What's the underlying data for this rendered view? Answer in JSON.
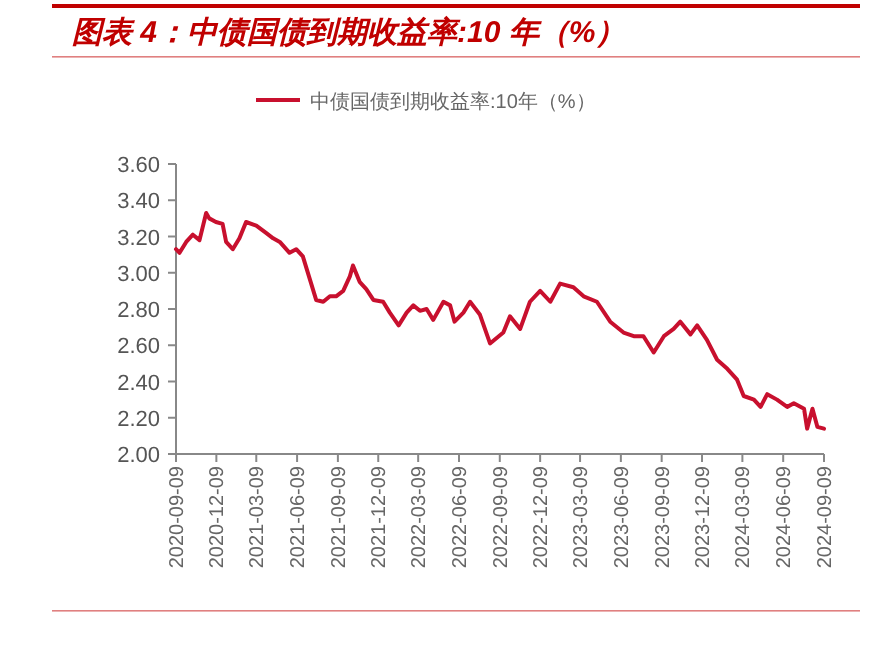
{
  "chart_data": {
    "type": "line",
    "title": "图表 4：中债国债到期收益率:10 年（%）",
    "x": [
      "2020-09-09",
      "2020-09-17",
      "2020-10-02",
      "2020-10-17",
      "2020-11-01",
      "2020-11-16",
      "2020-11-23",
      "2020-12-08",
      "2020-12-23",
      "2020-12-31",
      "2021-01-15",
      "2021-01-30",
      "2021-02-14",
      "2021-03-09",
      "2021-03-31",
      "2021-04-16",
      "2021-05-01",
      "2021-05-23",
      "2021-06-07",
      "2021-06-22",
      "2021-07-07",
      "2021-07-22",
      "2021-08-07",
      "2021-08-22",
      "2021-09-05",
      "2021-09-21",
      "2021-10-06",
      "2021-10-13",
      "2021-10-28",
      "2021-11-12",
      "2021-11-28",
      "2021-12-20",
      "2022-01-04",
      "2022-01-24",
      "2022-02-11",
      "2022-02-26",
      "2022-03-13",
      "2022-03-28",
      "2022-04-12",
      "2022-05-05",
      "2022-05-20",
      "2022-05-30",
      "2022-06-19",
      "2022-07-04",
      "2022-07-26",
      "2022-08-18",
      "2022-09-17",
      "2022-10-02",
      "2022-10-25",
      "2022-11-16",
      "2022-12-09",
      "2023-01-01",
      "2023-01-23",
      "2023-02-22",
      "2023-03-17",
      "2023-04-16",
      "2023-05-16",
      "2023-06-15",
      "2023-07-08",
      "2023-07-30",
      "2023-08-22",
      "2023-09-14",
      "2023-10-06",
      "2023-10-21",
      "2023-11-13",
      "2023-11-28",
      "2023-12-20",
      "2024-01-12",
      "2024-02-04",
      "2024-02-26",
      "2024-03-12",
      "2024-04-04",
      "2024-04-19",
      "2024-05-04",
      "2024-05-26",
      "2024-06-18",
      "2024-07-03",
      "2024-07-26",
      "2024-08-02",
      "2024-08-14",
      "2024-08-25",
      "2024-09-09"
    ],
    "series": [
      {
        "name": "中债国债到期收益率:10年（%）",
        "color": "#c8102e",
        "values": [
          3.13,
          3.11,
          3.17,
          3.21,
          3.18,
          3.33,
          3.3,
          3.28,
          3.27,
          3.17,
          3.13,
          3.19,
          3.28,
          3.26,
          3.22,
          3.19,
          3.17,
          3.11,
          3.13,
          3.09,
          2.97,
          2.85,
          2.84,
          2.87,
          2.87,
          2.9,
          2.98,
          3.04,
          2.95,
          2.91,
          2.85,
          2.84,
          2.78,
          2.71,
          2.78,
          2.82,
          2.79,
          2.8,
          2.74,
          2.84,
          2.82,
          2.73,
          2.78,
          2.84,
          2.77,
          2.61,
          2.67,
          2.76,
          2.69,
          2.84,
          2.9,
          2.84,
          2.94,
          2.92,
          2.87,
          2.84,
          2.73,
          2.67,
          2.65,
          2.65,
          2.56,
          2.65,
          2.69,
          2.73,
          2.66,
          2.71,
          2.63,
          2.52,
          2.47,
          2.41,
          2.32,
          2.3,
          2.26,
          2.33,
          2.3,
          2.26,
          2.28,
          2.25,
          2.14,
          2.25,
          2.15,
          2.14
        ]
      }
    ],
    "xlim": [
      "2020-09-09",
      "2024-09-09"
    ],
    "xticks": [
      "2020-09-09",
      "2020-12-09",
      "2021-03-09",
      "2021-06-09",
      "2021-09-09",
      "2021-12-09",
      "2022-03-09",
      "2022-06-09",
      "2022-09-09",
      "2022-12-09",
      "2023-03-09",
      "2023-06-09",
      "2023-09-09",
      "2023-12-09",
      "2024-03-09",
      "2024-06-09",
      "2024-09-09"
    ],
    "ylim": [
      2.0,
      3.6
    ],
    "yticks": [
      {
        "value": 2.0,
        "label": "2.00"
      },
      {
        "value": 2.2,
        "label": "2.20"
      },
      {
        "value": 2.4,
        "label": "2.40"
      },
      {
        "value": 2.6,
        "label": "2.60"
      },
      {
        "value": 2.8,
        "label": "2.80"
      },
      {
        "value": 3.0,
        "label": "3.00"
      },
      {
        "value": 3.2,
        "label": "3.20"
      },
      {
        "value": 3.4,
        "label": "3.40"
      },
      {
        "value": 3.6,
        "label": "3.60"
      }
    ],
    "legend": "top",
    "line_style": "solid"
  }
}
